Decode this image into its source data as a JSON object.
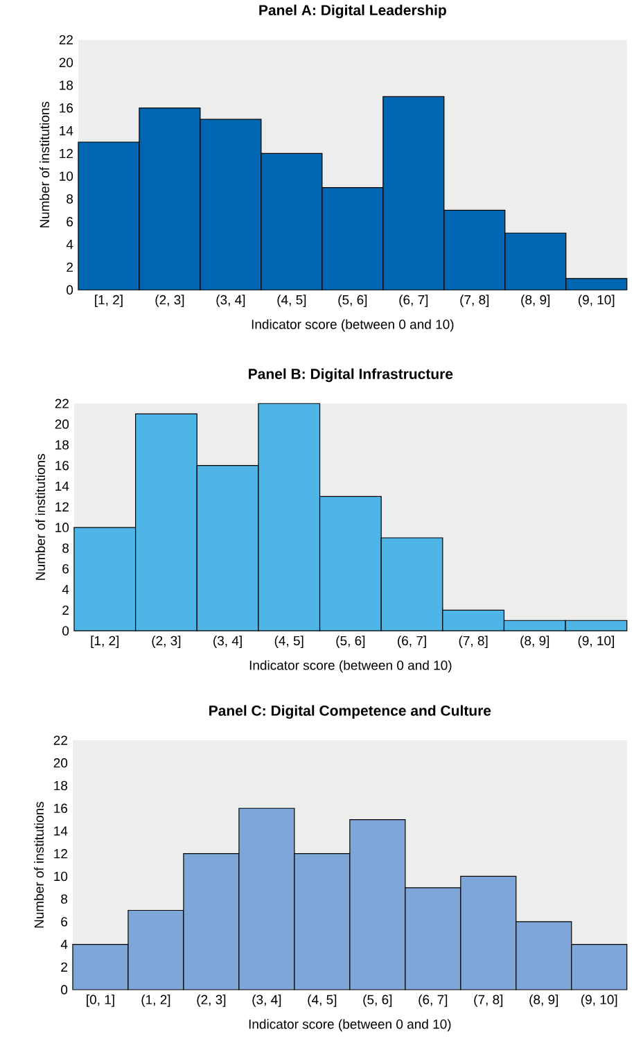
{
  "chart_data": [
    {
      "type": "bar",
      "title": "Panel A: Digital Leadership",
      "xlabel": "Indicator score (between 0 and 10)",
      "ylabel": "Number of institutions",
      "categories": [
        "[1, 2]",
        "(2, 3]",
        "(3, 4]",
        "(4, 5]",
        "(5, 6]",
        "(6, 7]",
        "(7, 8]",
        "(8, 9]",
        "(9, 10]"
      ],
      "values": [
        13,
        16,
        15,
        12,
        9,
        17,
        7,
        5,
        1
      ],
      "color": "#0066b2",
      "ylim": [
        0,
        22
      ],
      "yticks": [
        0,
        2,
        4,
        6,
        8,
        10,
        12,
        14,
        16,
        18,
        20,
        22
      ]
    },
    {
      "type": "bar",
      "title": "Panel B: Digital Infrastructure",
      "xlabel": "Indicator score (between 0 and 10)",
      "ylabel": "Number of institutions",
      "categories": [
        "[1, 2]",
        "(2, 3]",
        "(3, 4]",
        "(4, 5]",
        "(5, 6]",
        "(6, 7]",
        "(7, 8]",
        "(8, 9]",
        "(9, 10]"
      ],
      "values": [
        10,
        21,
        16,
        22,
        13,
        9,
        2,
        1,
        1
      ],
      "color": "#4fb5e6",
      "ylim": [
        0,
        22
      ],
      "yticks": [
        0,
        2,
        4,
        6,
        8,
        10,
        12,
        14,
        16,
        18,
        20,
        22
      ]
    },
    {
      "type": "bar",
      "title": "Panel C: Digital Competence and Culture",
      "xlabel": "Indicator score (between 0 and 10)",
      "ylabel": "Number of institutions",
      "categories": [
        "[0, 1]",
        "(1, 2]",
        "(2, 3]",
        "(3, 4]",
        "(4, 5]",
        "(5, 6]",
        "(6, 7]",
        "(7, 8]",
        "(8, 9]",
        "(9, 10]"
      ],
      "values": [
        4,
        7,
        12,
        16,
        12,
        15,
        9,
        10,
        6,
        4
      ],
      "color": "#7ea6d8",
      "ylim": [
        0,
        22
      ],
      "yticks": [
        0,
        2,
        4,
        6,
        8,
        10,
        12,
        14,
        16,
        18,
        20,
        22
      ]
    }
  ]
}
